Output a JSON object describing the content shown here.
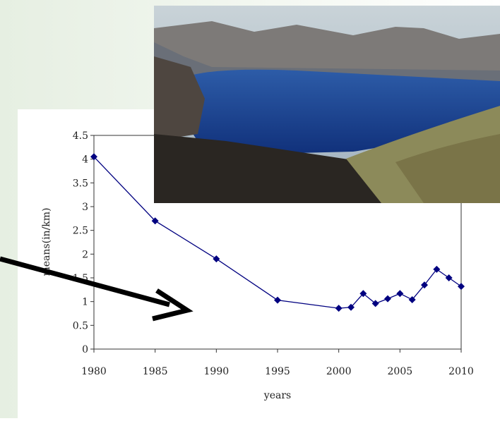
{
  "chart_data": {
    "type": "line",
    "x": [
      1980,
      1985,
      1990,
      1995,
      2000,
      2001,
      2002,
      2003,
      2004,
      2005,
      2006,
      2007,
      2008,
      2009,
      2010
    ],
    "series": [
      {
        "color": "#000080",
        "values": [
          4.05,
          2.7,
          1.9,
          1.03,
          0.86,
          0.88,
          1.17,
          0.96,
          1.06,
          1.17,
          1.04,
          1.35,
          1.68,
          1.5,
          1.32
        ]
      }
    ],
    "xlabel": "years",
    "ylabel": "means(in/km)",
    "xlim": [
      1980,
      2010
    ],
    "xticks": [
      1980,
      1985,
      1990,
      1995,
      2000,
      2005,
      2010
    ],
    "ylim": [
      0,
      4.5
    ],
    "yticks": [
      0,
      0.5,
      1,
      1.5,
      2,
      2.5,
      3,
      3.5,
      4,
      4.5
    ]
  }
}
